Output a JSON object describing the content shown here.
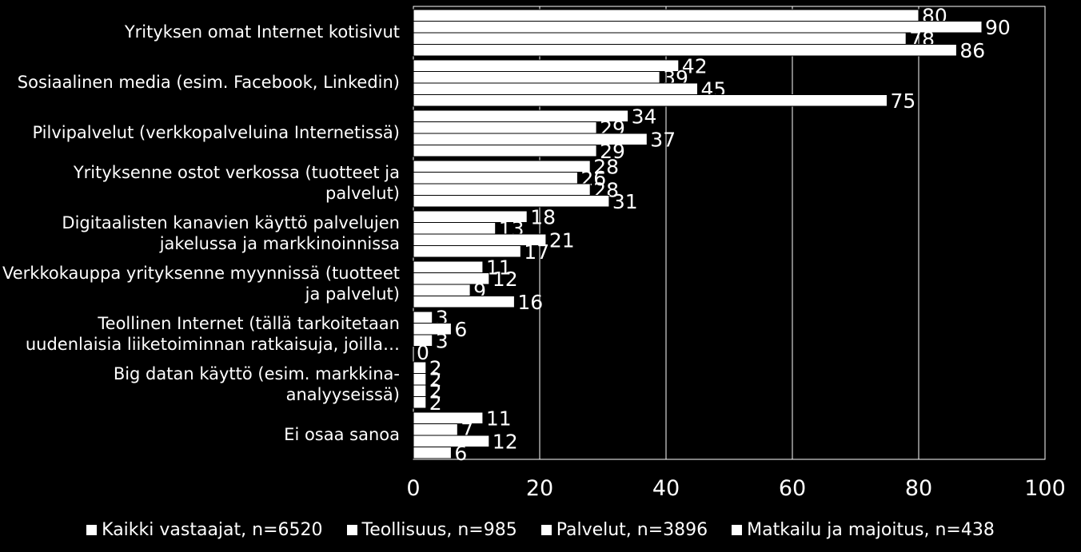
{
  "chart_data": {
    "type": "bar",
    "orientation": "horizontal",
    "title": "",
    "xlabel": "",
    "ylabel": "",
    "xlim": [
      0,
      100
    ],
    "x_ticks": [
      "0",
      "20",
      "40",
      "60",
      "80",
      "100"
    ],
    "grid": true,
    "legend_position": "bottom",
    "categories": [
      "Yrityksen omat Internet kotisivut",
      "Sosiaalinen media (esim. Facebook, Linkedin)",
      "Pilvipalvelut  (verkkopalveluina Internetissä)",
      "Yrityksenne ostot verkossa (tuotteet ja palvelut)",
      "Digitaalisten kanavien käyttö palvelujen jakelussa ja markkinoinnissa",
      "Verkkokauppa yrityksenne myynnissä (tuotteet ja palvelut)",
      "Teollinen Internet (tällä tarkoitetaan uudenlaisia liiketoiminnan ratkaisuja, joilla…",
      "Big datan käyttö (esim. markkina-analyyseissä)",
      "Ei osaa sanoa"
    ],
    "series": [
      {
        "name": "Kaikki vastaajat, n=6520",
        "values": [
          80,
          42,
          34,
          28,
          18,
          11,
          3,
          2,
          11
        ]
      },
      {
        "name": "Teollisuus, n=985",
        "values": [
          90,
          39,
          29,
          26,
          13,
          12,
          6,
          2,
          7
        ]
      },
      {
        "name": "Palvelut, n=3896",
        "values": [
          78,
          45,
          37,
          28,
          21,
          9,
          3,
          2,
          12
        ]
      },
      {
        "name": "Matkailu ja majoitus, n=438",
        "values": [
          86,
          75,
          29,
          31,
          17,
          16,
          0,
          2,
          6
        ]
      }
    ],
    "colors": {
      "background": "#000000",
      "bar": "#ffffff",
      "bar_outline": "#000000",
      "text": "#ffffff",
      "grid": "#ffffff"
    }
  }
}
